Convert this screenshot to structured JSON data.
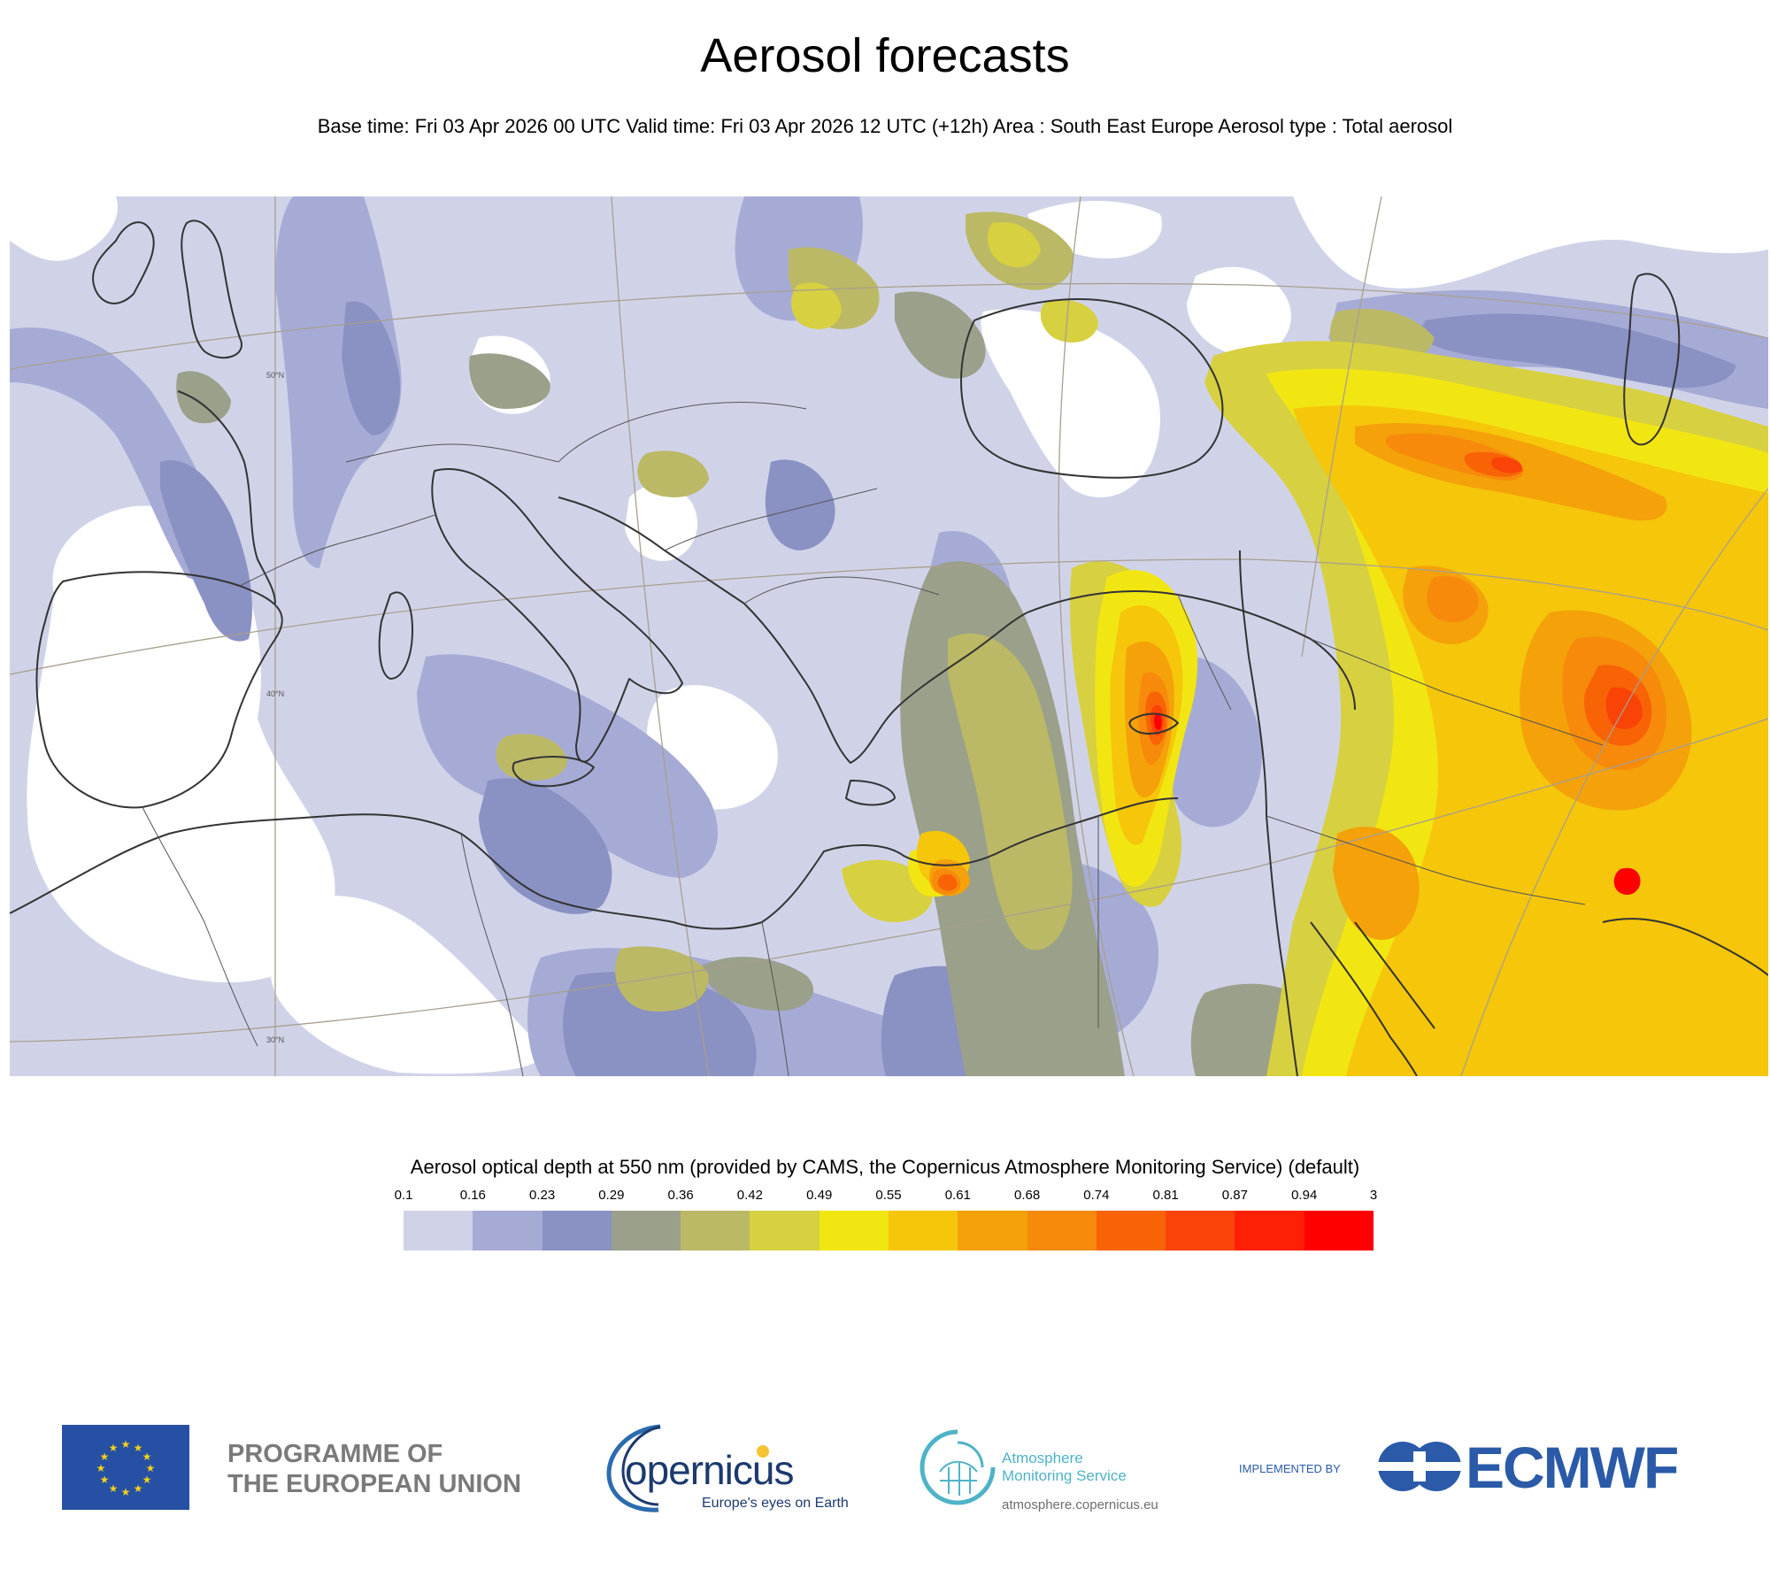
{
  "header": {
    "title": "Aerosol forecasts",
    "subtitle": "Base time: Fri 03 Apr 2026 00 UTC Valid time: Fri 03 Apr 2026 12 UTC (+12h) Area : South East Europe Aerosol type : Total aerosol"
  },
  "map": {
    "area": "South East Europe",
    "aerosol_type": "Total aerosol",
    "grid_labels": [
      "50°N",
      "40°N",
      "30°N"
    ]
  },
  "legend": {
    "title": "Aerosol optical depth at 550 nm (provided by CAMS, the Copernicus Atmosphere Monitoring Service) (default)",
    "ticks": [
      "0.1",
      "0.16",
      "0.23",
      "0.29",
      "0.36",
      "0.42",
      "0.49",
      "0.55",
      "0.61",
      "0.68",
      "0.74",
      "0.81",
      "0.87",
      "0.94",
      "3"
    ],
    "colors": [
      "#d0d3e8",
      "#a6abd6",
      "#8a91c3",
      "#9aa08a",
      "#bbb966",
      "#d7d040",
      "#f2e612",
      "#f5c60a",
      "#f4a10a",
      "#f78a0a",
      "#f86306",
      "#fa4306",
      "#fd2004",
      "#fe0000"
    ]
  },
  "footer": {
    "eu_line1": "PROGRAMME OF",
    "eu_line2": "THE EUROPEAN UNION",
    "copernicus_word": "opernicus",
    "copernicus_tagline": "Europe's eyes on Earth",
    "cams_line1": "Atmosphere",
    "cams_line2": "Monitoring Service",
    "cams_url": "atmosphere.copernicus.eu",
    "implemented_by": "IMPLEMENTED BY",
    "ecmwf": "ECMWF"
  }
}
